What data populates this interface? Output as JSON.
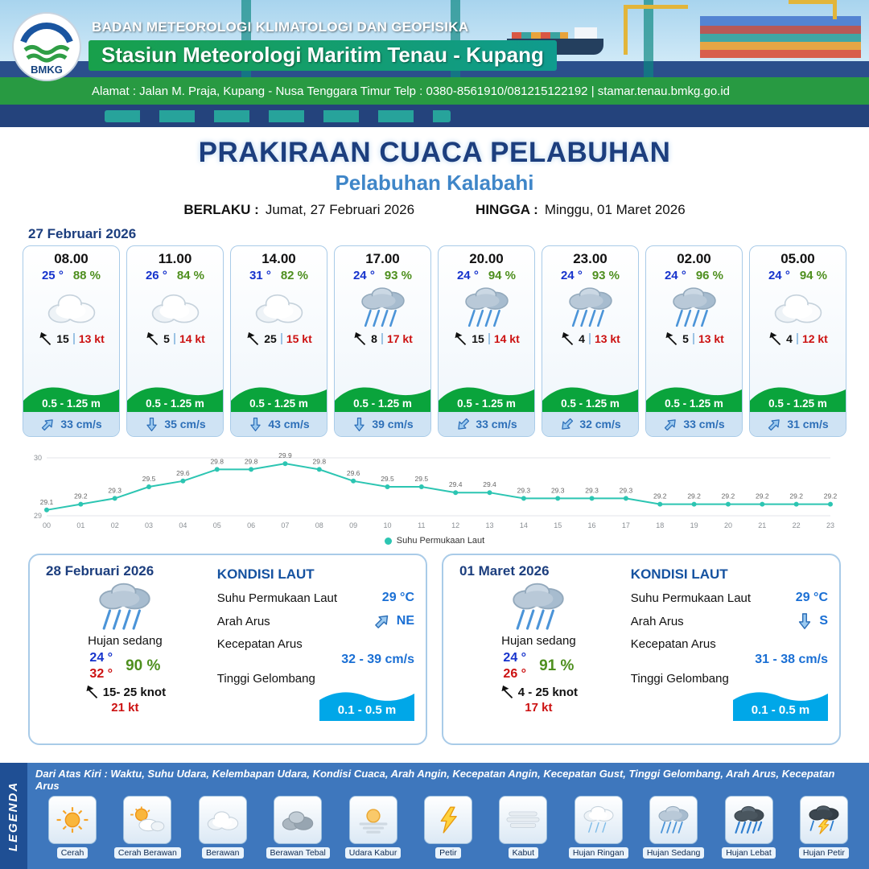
{
  "header": {
    "logo_text": "BMKG",
    "agency": "BADAN METEOROLOGI KLIMATOLOGI DAN GEOFISIKA",
    "station": "Stasiun Meteorologi Maritim Tenau - Kupang",
    "address": "Alamat : Jalan M. Praja, Kupang - Nusa Tenggara Timur Telp : 0380-8561910/081215122192  | stamar.tenau.bmkg.go.id"
  },
  "title": {
    "main": "PRAKIRAAN CUACA PELABUHAN",
    "sub": "Pelabuhan Kalabahi",
    "berlaku_label": "BERLAKU :",
    "berlaku_value": "Jumat, 27 Februari 2026",
    "hingga_label": "HINGGA :",
    "hingga_value": "Minggu, 01 Maret 2026"
  },
  "forecast": {
    "date": "27 Februari 2026",
    "cards": [
      {
        "time": "08.00",
        "temp": "25 °",
        "humidity": "88 %",
        "icon": "cloud",
        "wind_speed": "15",
        "gust": "13 kt",
        "wave": "0.5 - 1.25 m",
        "current_dir": "NE",
        "current_speed": "33 cm/s"
      },
      {
        "time": "11.00",
        "temp": "26 °",
        "humidity": "84 %",
        "icon": "cloud",
        "wind_speed": "5",
        "gust": "14 kt",
        "wave": "0.5 - 1.25 m",
        "current_dir": "S",
        "current_speed": "35 cm/s"
      },
      {
        "time": "14.00",
        "temp": "31 °",
        "humidity": "82 %",
        "icon": "cloud",
        "wind_speed": "25",
        "gust": "15 kt",
        "wave": "0.5 - 1.25 m",
        "current_dir": "S",
        "current_speed": "43 cm/s"
      },
      {
        "time": "17.00",
        "temp": "24 °",
        "humidity": "93 %",
        "icon": "rain-moderate",
        "wind_speed": "8",
        "gust": "17 kt",
        "wave": "0.5 - 1.25 m",
        "current_dir": "S",
        "current_speed": "39 cm/s"
      },
      {
        "time": "20.00",
        "temp": "24 °",
        "humidity": "94 %",
        "icon": "rain-moderate",
        "wind_speed": "15",
        "gust": "14 kt",
        "wave": "0.5 - 1.25 m",
        "current_dir": "SW",
        "current_speed": "33 cm/s"
      },
      {
        "time": "23.00",
        "temp": "24 °",
        "humidity": "93 %",
        "icon": "rain-moderate",
        "wind_speed": "4",
        "gust": "13 kt",
        "wave": "0.5 - 1.25 m",
        "current_dir": "SW",
        "current_speed": "32 cm/s"
      },
      {
        "time": "02.00",
        "temp": "24 °",
        "humidity": "96 %",
        "icon": "rain-moderate",
        "wind_speed": "5",
        "gust": "13 kt",
        "wave": "0.5 - 1.25 m",
        "current_dir": "NE",
        "current_speed": "33 cm/s"
      },
      {
        "time": "05.00",
        "temp": "24 °",
        "humidity": "94 %",
        "icon": "cloud",
        "wind_speed": "4",
        "gust": "12 kt",
        "wave": "0.5 - 1.25 m",
        "current_dir": "NE",
        "current_speed": "31 cm/s"
      }
    ]
  },
  "chart_data": {
    "type": "line",
    "title": "Suhu Permukaan Laut",
    "legend": "Suhu Permukaan Laut",
    "x": [
      "00",
      "01",
      "02",
      "03",
      "04",
      "05",
      "06",
      "07",
      "08",
      "09",
      "10",
      "11",
      "12",
      "13",
      "14",
      "15",
      "16",
      "17",
      "18",
      "19",
      "20",
      "21",
      "22",
      "23"
    ],
    "values": [
      29.1,
      29.2,
      29.3,
      29.5,
      29.6,
      29.8,
      29.8,
      29.9,
      29.8,
      29.6,
      29.5,
      29.5,
      29.4,
      29.4,
      29.3,
      29.3,
      29.3,
      29.3,
      29.2,
      29.2,
      29.2,
      29.2,
      29.2,
      29.2
    ],
    "ylim": [
      29,
      30
    ],
    "xlabel": "",
    "ylabel": "",
    "grid": true,
    "legend_position": "bottom",
    "line_color": "#2cc5b2"
  },
  "day_panels": [
    {
      "date": "28 Februari 2026",
      "icon": "rain-moderate",
      "condition": "Hujan sedang",
      "temp_min": "24 °",
      "temp_max": "32 °",
      "humidity": "90 %",
      "wind_range": "15- 25 knot",
      "gust": "21 kt",
      "sea": {
        "heading": "KONDISI LAUT",
        "sst_label": "Suhu Permukaan Laut",
        "sst": "29 °C",
        "dir_label": "Arah Arus",
        "dir": "NE",
        "speed_label": "Kecepatan Arus",
        "speed": "32 - 39 cm/s",
        "wave_label": "Tinggi Gelombang",
        "wave": "0.1 - 0.5 m"
      }
    },
    {
      "date": "01 Maret 2026",
      "icon": "rain-moderate",
      "condition": "Hujan sedang",
      "temp_min": "24 °",
      "temp_max": "26 °",
      "humidity": "91 %",
      "wind_range": "4 - 25 knot",
      "gust": "17 kt",
      "sea": {
        "heading": "KONDISI LAUT",
        "sst_label": "Suhu Permukaan Laut",
        "sst": "29 °C",
        "dir_label": "Arah Arus",
        "dir": "S",
        "speed_label": "Kecepatan Arus",
        "speed": "31 - 38 cm/s",
        "wave_label": "Tinggi Gelombang",
        "wave": "0.1 - 0.5 m"
      }
    }
  ],
  "legend": {
    "title": "LEGENDA",
    "note": "Dari Atas Kiri : Waktu, Suhu Udara, Kelembapan Udara, Kondisi Cuaca, Arah Angin, Kecepatan Angin, Kecepatan Gust, Tinggi Gelombang, Arah Arus, Kecepatan Arus",
    "items": [
      {
        "label": "Cerah",
        "icon": "sun"
      },
      {
        "label": "Cerah Berawan",
        "icon": "sun-cloud"
      },
      {
        "label": "Berawan",
        "icon": "cloud"
      },
      {
        "label": "Berawan Tebal",
        "icon": "cloud-dark"
      },
      {
        "label": "Udara Kabur",
        "icon": "haze"
      },
      {
        "label": "Petir",
        "icon": "lightning"
      },
      {
        "label": "Kabut",
        "icon": "fog"
      },
      {
        "label": "Hujan Ringan",
        "icon": "rain-light"
      },
      {
        "label": "Hujan Sedang",
        "icon": "rain-moderate"
      },
      {
        "label": "Hujan Lebat",
        "icon": "rain-heavy"
      },
      {
        "label": "Hujan Petir",
        "icon": "storm"
      }
    ]
  }
}
